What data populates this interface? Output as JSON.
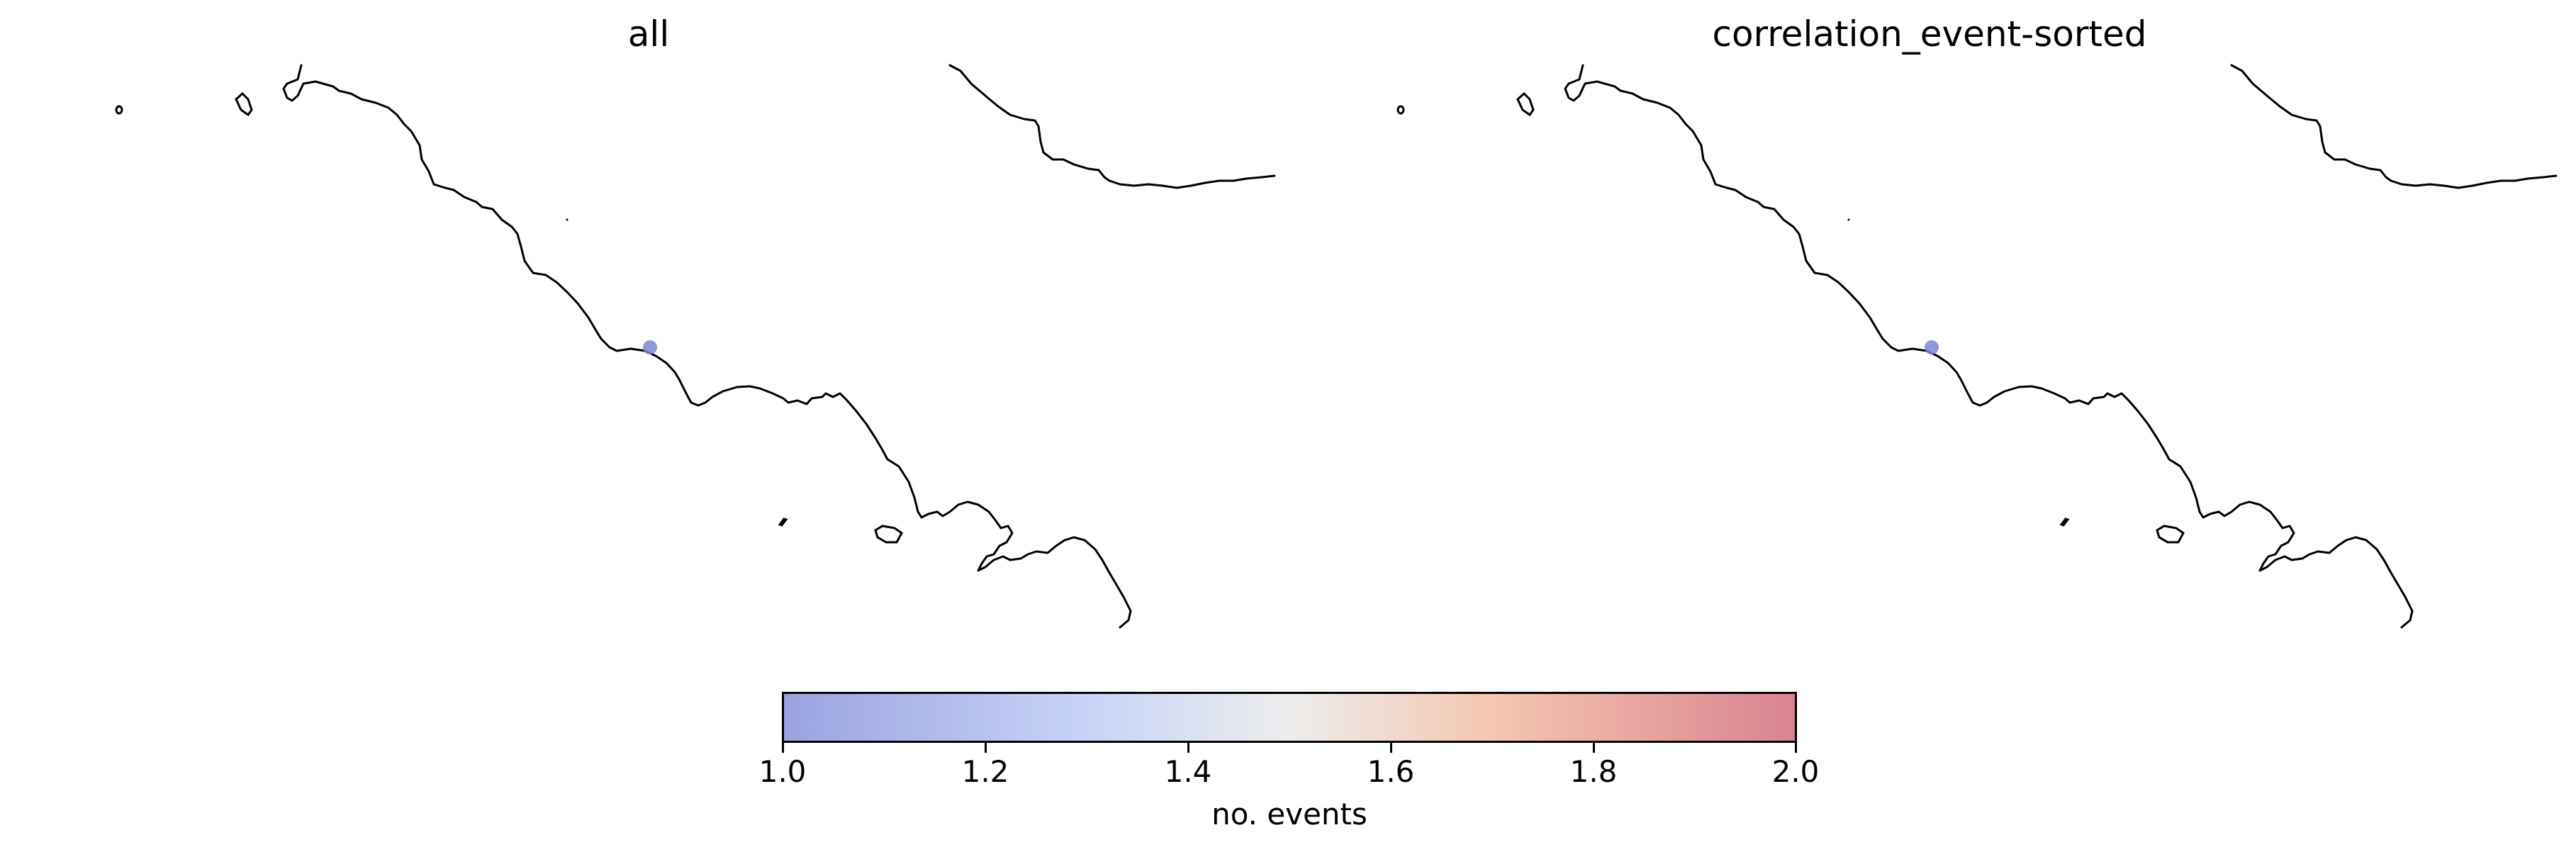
{
  "panels": [
    {
      "title": "all",
      "events": [
        {
          "value": 1.0
        }
      ]
    },
    {
      "title": "correlation_event-sorted",
      "events": [
        {
          "value": 1.0
        }
      ]
    }
  ],
  "colorbar": {
    "label": "no. events",
    "min": 1.0,
    "max": 2.0,
    "ticks": [
      "1.0",
      "1.2",
      "1.4",
      "1.6",
      "1.8",
      "2.0"
    ],
    "colormap": "coolwarm",
    "color_low": "#9aa3e0",
    "color_mid": "#ededed",
    "color_high": "#d98390"
  }
}
